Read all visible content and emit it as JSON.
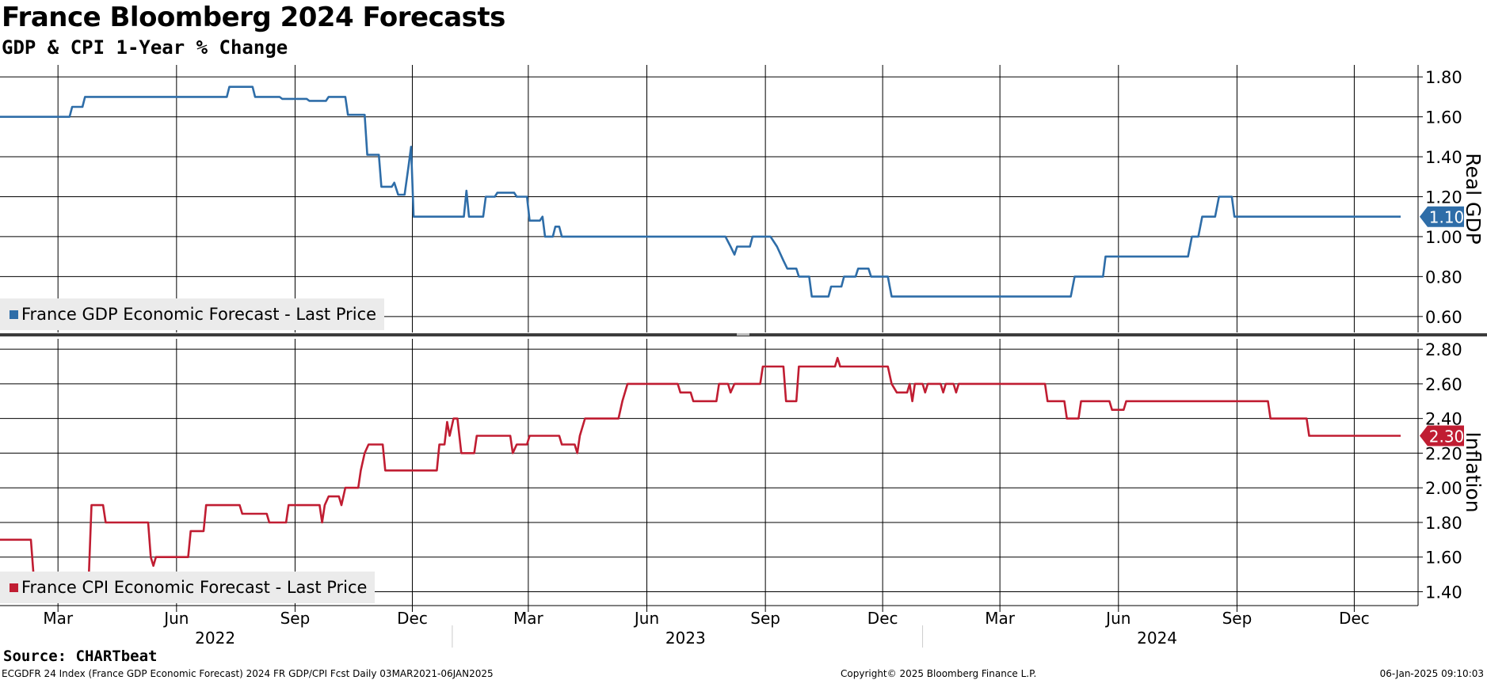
{
  "header": {
    "title": "France Bloomberg 2024 Forecasts",
    "subtitle": "GDP & CPI 1-Year % Change"
  },
  "footer": {
    "source": "Source: CHARTbeat",
    "ticker_info": "ECGDFR 24 Index (France GDP Economic Forecast) 2024 FR GDP/CPI Fcst  Daily 03MAR2021-06JAN2025",
    "copyright": "Copyright© 2025 Bloomberg Finance L.P.",
    "timestamp": "06-Jan-2025 09:10:03"
  },
  "colors": {
    "gdp": "#2e6da8",
    "cpi": "#c01d32",
    "grid": "#000000",
    "legend_bg": "#ebebeb"
  },
  "x_axis": {
    "month_ticks": [
      {
        "label": "Mar",
        "date": "2022-03-01"
      },
      {
        "label": "Jun",
        "date": "2022-06-01"
      },
      {
        "label": "Sep",
        "date": "2022-09-01"
      },
      {
        "label": "Dec",
        "date": "2022-12-01"
      },
      {
        "label": "Mar",
        "date": "2023-03-01"
      },
      {
        "label": "Jun",
        "date": "2023-06-01"
      },
      {
        "label": "Sep",
        "date": "2023-09-01"
      },
      {
        "label": "Dec",
        "date": "2023-12-01"
      },
      {
        "label": "Mar",
        "date": "2024-03-01"
      },
      {
        "label": "Jun",
        "date": "2024-06-01"
      },
      {
        "label": "Sep",
        "date": "2024-09-01"
      },
      {
        "label": "Dec",
        "date": "2024-12-01"
      }
    ],
    "years": [
      {
        "label": "2022",
        "date": "2022-07-01"
      },
      {
        "label": "2023",
        "date": "2023-07-01"
      },
      {
        "label": "2024",
        "date": "2024-07-01"
      }
    ],
    "year_separators": [
      "2023-01-01",
      "2024-01-01"
    ]
  },
  "chart_data": [
    {
      "type": "line",
      "title": "",
      "ylabel": "Real GDP",
      "ylim": [
        0.52,
        1.86
      ],
      "yticks": [
        "1.80",
        "1.60",
        "1.40",
        "1.20",
        "1.00",
        "0.80",
        "0.60"
      ],
      "grid": true,
      "legend_position": "bottom-left",
      "last_value_label": "1.10",
      "series": [
        {
          "name": "France GDP Economic Forecast - Last Price",
          "color": "#2e6da8",
          "points": [
            [
              "2022-01-15",
              1.6
            ],
            [
              "2022-03-10",
              1.6
            ],
            [
              "2022-03-12",
              1.65
            ],
            [
              "2022-03-20",
              1.65
            ],
            [
              "2022-03-22",
              1.7
            ],
            [
              "2022-07-10",
              1.7
            ],
            [
              "2022-07-12",
              1.75
            ],
            [
              "2022-07-30",
              1.75
            ],
            [
              "2022-08-01",
              1.7
            ],
            [
              "2022-08-20",
              1.7
            ],
            [
              "2022-08-22",
              1.69
            ],
            [
              "2022-09-10",
              1.69
            ],
            [
              "2022-09-12",
              1.68
            ],
            [
              "2022-09-25",
              1.68
            ],
            [
              "2022-09-27",
              1.7
            ],
            [
              "2022-10-10",
              1.7
            ],
            [
              "2022-10-12",
              1.61
            ],
            [
              "2022-10-25",
              1.61
            ],
            [
              "2022-10-27",
              1.41
            ],
            [
              "2022-11-05",
              1.41
            ],
            [
              "2022-11-07",
              1.25
            ],
            [
              "2022-11-15",
              1.25
            ],
            [
              "2022-11-17",
              1.27
            ],
            [
              "2022-11-20",
              1.21
            ],
            [
              "2022-11-25",
              1.21
            ],
            [
              "2022-11-28",
              1.35
            ],
            [
              "2022-11-30",
              1.45
            ],
            [
              "2022-12-02",
              1.1
            ],
            [
              "2023-01-10",
              1.1
            ],
            [
              "2023-01-12",
              1.23
            ],
            [
              "2023-01-14",
              1.1
            ],
            [
              "2023-01-25",
              1.1
            ],
            [
              "2023-01-27",
              1.2
            ],
            [
              "2023-02-03",
              1.2
            ],
            [
              "2023-02-05",
              1.22
            ],
            [
              "2023-02-18",
              1.22
            ],
            [
              "2023-02-20",
              1.2
            ],
            [
              "2023-02-28",
              1.2
            ],
            [
              "2023-03-02",
              1.08
            ],
            [
              "2023-03-10",
              1.08
            ],
            [
              "2023-03-12",
              1.1
            ],
            [
              "2023-03-14",
              1.0
            ],
            [
              "2023-03-20",
              1.0
            ],
            [
              "2023-03-22",
              1.05
            ],
            [
              "2023-03-25",
              1.05
            ],
            [
              "2023-03-27",
              1.0
            ],
            [
              "2023-08-01",
              1.0
            ],
            [
              "2023-08-05",
              0.95
            ],
            [
              "2023-08-08",
              0.91
            ],
            [
              "2023-08-10",
              0.95
            ],
            [
              "2023-08-20",
              0.95
            ],
            [
              "2023-08-22",
              1.0
            ],
            [
              "2023-09-05",
              1.0
            ],
            [
              "2023-09-10",
              0.95
            ],
            [
              "2023-09-15",
              0.88
            ],
            [
              "2023-09-18",
              0.84
            ],
            [
              "2023-09-25",
              0.84
            ],
            [
              "2023-09-27",
              0.8
            ],
            [
              "2023-10-05",
              0.8
            ],
            [
              "2023-10-07",
              0.7
            ],
            [
              "2023-10-20",
              0.7
            ],
            [
              "2023-10-22",
              0.75
            ],
            [
              "2023-10-30",
              0.75
            ],
            [
              "2023-11-01",
              0.8
            ],
            [
              "2023-11-10",
              0.8
            ],
            [
              "2023-11-12",
              0.84
            ],
            [
              "2023-11-20",
              0.84
            ],
            [
              "2023-11-22",
              0.8
            ],
            [
              "2023-12-05",
              0.8
            ],
            [
              "2023-12-08",
              0.7
            ],
            [
              "2024-04-25",
              0.7
            ],
            [
              "2024-04-28",
              0.8
            ],
            [
              "2024-05-20",
              0.8
            ],
            [
              "2024-05-22",
              0.9
            ],
            [
              "2024-07-25",
              0.9
            ],
            [
              "2024-07-28",
              1.0
            ],
            [
              "2024-08-02",
              1.0
            ],
            [
              "2024-08-05",
              1.1
            ],
            [
              "2024-08-15",
              1.1
            ],
            [
              "2024-08-18",
              1.2
            ],
            [
              "2024-08-28",
              1.2
            ],
            [
              "2024-08-30",
              1.1
            ],
            [
              "2025-01-06",
              1.1
            ]
          ]
        }
      ]
    },
    {
      "type": "line",
      "title": "",
      "ylabel": "Inflation",
      "ylim": [
        1.32,
        2.86
      ],
      "yticks": [
        "2.80",
        "2.60",
        "2.40",
        "2.20",
        "2.00",
        "1.80",
        "1.60",
        "1.40"
      ],
      "grid": true,
      "legend_position": "bottom-left",
      "last_value_label": "2.30",
      "series": [
        {
          "name": "France CPI Economic Forecast - Last Price",
          "color": "#c01d32",
          "points": [
            [
              "2022-01-15",
              1.7
            ],
            [
              "2022-02-08",
              1.7
            ],
            [
              "2022-02-10",
              1.5
            ],
            [
              "2022-03-25",
              1.5
            ],
            [
              "2022-03-27",
              1.9
            ],
            [
              "2022-04-05",
              1.9
            ],
            [
              "2022-04-07",
              1.8
            ],
            [
              "2022-05-10",
              1.8
            ],
            [
              "2022-05-12",
              1.6
            ],
            [
              "2022-05-14",
              1.55
            ],
            [
              "2022-05-16",
              1.6
            ],
            [
              "2022-06-10",
              1.6
            ],
            [
              "2022-06-12",
              1.75
            ],
            [
              "2022-06-22",
              1.75
            ],
            [
              "2022-06-24",
              1.9
            ],
            [
              "2022-07-20",
              1.9
            ],
            [
              "2022-07-22",
              1.85
            ],
            [
              "2022-08-10",
              1.85
            ],
            [
              "2022-08-12",
              1.8
            ],
            [
              "2022-08-25",
              1.8
            ],
            [
              "2022-08-27",
              1.9
            ],
            [
              "2022-09-20",
              1.9
            ],
            [
              "2022-09-22",
              1.8
            ],
            [
              "2022-09-24",
              1.9
            ],
            [
              "2022-09-27",
              1.95
            ],
            [
              "2022-10-05",
              1.95
            ],
            [
              "2022-10-07",
              1.9
            ],
            [
              "2022-10-10",
              2.0
            ],
            [
              "2022-10-20",
              2.0
            ],
            [
              "2022-10-22",
              2.1
            ],
            [
              "2022-10-25",
              2.2
            ],
            [
              "2022-10-28",
              2.25
            ],
            [
              "2022-11-08",
              2.25
            ],
            [
              "2022-11-10",
              2.1
            ],
            [
              "2022-12-20",
              2.1
            ],
            [
              "2022-12-22",
              2.25
            ],
            [
              "2022-12-26",
              2.25
            ],
            [
              "2022-12-28",
              2.38
            ],
            [
              "2022-12-30",
              2.3
            ],
            [
              "2023-01-02",
              2.4
            ],
            [
              "2023-01-05",
              2.4
            ],
            [
              "2023-01-08",
              2.2
            ],
            [
              "2023-01-18",
              2.2
            ],
            [
              "2023-01-20",
              2.3
            ],
            [
              "2023-02-15",
              2.3
            ],
            [
              "2023-02-17",
              2.2
            ],
            [
              "2023-02-20",
              2.25
            ],
            [
              "2023-02-28",
              2.25
            ],
            [
              "2023-03-02",
              2.3
            ],
            [
              "2023-03-25",
              2.3
            ],
            [
              "2023-03-27",
              2.25
            ],
            [
              "2023-04-06",
              2.25
            ],
            [
              "2023-04-08",
              2.2
            ],
            [
              "2023-04-10",
              2.3
            ],
            [
              "2023-04-14",
              2.4
            ],
            [
              "2023-05-10",
              2.4
            ],
            [
              "2023-05-13",
              2.5
            ],
            [
              "2023-05-17",
              2.6
            ],
            [
              "2023-06-25",
              2.6
            ],
            [
              "2023-06-27",
              2.55
            ],
            [
              "2023-07-05",
              2.55
            ],
            [
              "2023-07-07",
              2.5
            ],
            [
              "2023-07-25",
              2.5
            ],
            [
              "2023-07-27",
              2.6
            ],
            [
              "2023-08-03",
              2.6
            ],
            [
              "2023-08-05",
              2.55
            ],
            [
              "2023-08-08",
              2.6
            ],
            [
              "2023-08-28",
              2.6
            ],
            [
              "2023-08-30",
              2.7
            ],
            [
              "2023-09-15",
              2.7
            ],
            [
              "2023-09-17",
              2.5
            ],
            [
              "2023-09-25",
              2.5
            ],
            [
              "2023-09-27",
              2.7
            ],
            [
              "2023-10-25",
              2.7
            ],
            [
              "2023-10-27",
              2.75
            ],
            [
              "2023-10-29",
              2.7
            ],
            [
              "2023-12-05",
              2.7
            ],
            [
              "2023-12-08",
              2.6
            ],
            [
              "2023-12-12",
              2.55
            ],
            [
              "2023-12-20",
              2.55
            ],
            [
              "2023-12-22",
              2.6
            ],
            [
              "2023-12-24",
              2.5
            ],
            [
              "2023-12-26",
              2.6
            ],
            [
              "2024-01-01",
              2.6
            ],
            [
              "2024-01-03",
              2.55
            ],
            [
              "2024-01-05",
              2.6
            ],
            [
              "2024-01-15",
              2.6
            ],
            [
              "2024-01-17",
              2.55
            ],
            [
              "2024-01-19",
              2.6
            ],
            [
              "2024-01-25",
              2.6
            ],
            [
              "2024-01-27",
              2.55
            ],
            [
              "2024-01-29",
              2.6
            ],
            [
              "2024-04-05",
              2.6
            ],
            [
              "2024-04-07",
              2.5
            ],
            [
              "2024-04-20",
              2.5
            ],
            [
              "2024-04-22",
              2.4
            ],
            [
              "2024-05-01",
              2.4
            ],
            [
              "2024-05-03",
              2.5
            ],
            [
              "2024-05-25",
              2.5
            ],
            [
              "2024-05-27",
              2.45
            ],
            [
              "2024-06-05",
              2.45
            ],
            [
              "2024-06-07",
              2.5
            ],
            [
              "2024-09-25",
              2.5
            ],
            [
              "2024-09-27",
              2.4
            ],
            [
              "2024-10-25",
              2.4
            ],
            [
              "2024-10-27",
              2.3
            ],
            [
              "2025-01-06",
              2.3
            ]
          ]
        }
      ]
    }
  ]
}
